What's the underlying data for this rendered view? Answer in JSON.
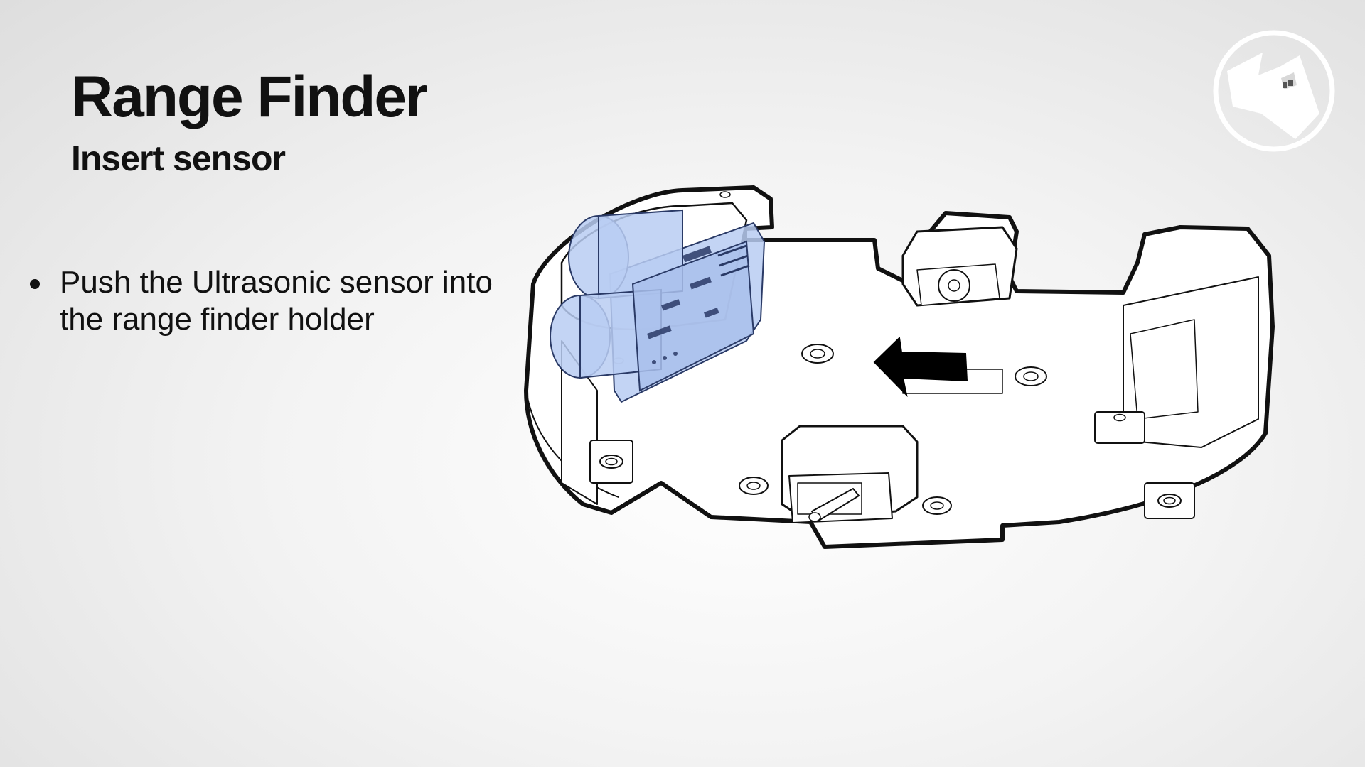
{
  "slide": {
    "title": "Range Finder",
    "subtitle": "Insert sensor",
    "bullets": [
      "Push the Ultrasonic sensor into the range finder holder"
    ]
  },
  "logo": {
    "icon": "robot-face-logo-icon",
    "color": "#ffffff"
  },
  "diagram": {
    "description_icons": [
      "robot-chassis-diagram",
      "ultrasonic-sensor",
      "insert-direction-arrow-icon"
    ],
    "colors": {
      "outline": "#111111",
      "body": "#ffffff",
      "sensor_highlight": "#b8ccf2",
      "arrow": "#000000"
    }
  }
}
